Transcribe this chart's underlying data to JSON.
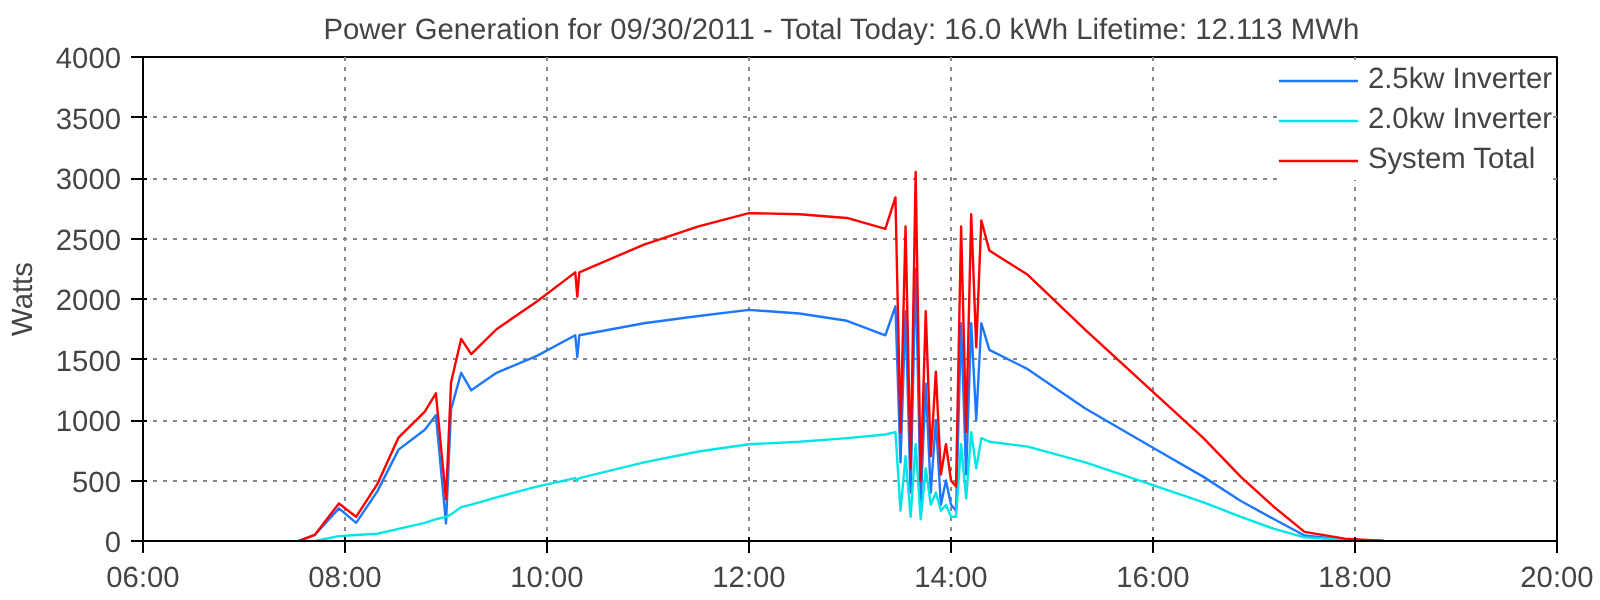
{
  "chart_data": {
    "type": "line",
    "title": "Power Generation for 09/30/2011 - Total Today: 16.0 kWh   Lifetime: 12.113 MWh",
    "ylabel": "Watts",
    "x": [
      7.54,
      7.7,
      7.94,
      8.11,
      8.32,
      8.53,
      8.79,
      8.9,
      9.0,
      9.05,
      9.15,
      9.25,
      9.5,
      9.9,
      10.28,
      10.3,
      10.32,
      10.96,
      11.5,
      12.0,
      12.5,
      12.97,
      13.35,
      13.45,
      13.5,
      13.55,
      13.6,
      13.65,
      13.7,
      13.75,
      13.8,
      13.85,
      13.9,
      13.95,
      14.0,
      14.05,
      14.1,
      14.15,
      14.2,
      14.25,
      14.3,
      14.38,
      14.76,
      15.33,
      15.97,
      16.5,
      16.87,
      17.2,
      17.5,
      17.9,
      18.29
    ],
    "series": [
      {
        "name": "2.5kw Inverter",
        "color": "#1e78ff",
        "values": [
          0,
          50,
          270,
          150,
          410,
          755,
          920,
          1040,
          145,
          1090,
          1390,
          1245,
          1390,
          1530,
          1700,
          1520,
          1700,
          1800,
          1860,
          1910,
          1880,
          1820,
          1700,
          1940,
          650,
          1900,
          400,
          2250,
          320,
          1300,
          400,
          1000,
          300,
          500,
          300,
          250,
          1800,
          550,
          1800,
          1000,
          1800,
          1580,
          1420,
          1095,
          785,
          530,
          330,
          180,
          45,
          10,
          0
        ]
      },
      {
        "name": "2.0kw Inverter",
        "color": "#00e5e5",
        "values": [
          0,
          0,
          40,
          50,
          60,
          100,
          150,
          180,
          200,
          220,
          280,
          300,
          360,
          450,
          520,
          500,
          520,
          650,
          740,
          800,
          820,
          850,
          880,
          900,
          250,
          700,
          200,
          800,
          180,
          600,
          300,
          400,
          250,
          300,
          200,
          200,
          800,
          350,
          900,
          600,
          850,
          820,
          780,
          650,
          470,
          320,
          200,
          100,
          30,
          10,
          0
        ]
      },
      {
        "name": "System Total",
        "color": "#ff0000",
        "values": [
          0,
          50,
          310,
          200,
          470,
          855,
          1070,
          1220,
          345,
          1310,
          1670,
          1545,
          1750,
          1980,
          2220,
          2020,
          2220,
          2450,
          2600,
          2710,
          2700,
          2670,
          2580,
          2840,
          900,
          2600,
          600,
          3050,
          500,
          1900,
          700,
          1400,
          550,
          800,
          500,
          450,
          2600,
          900,
          2700,
          1600,
          2650,
          2400,
          2200,
          1745,
          1255,
          850,
          530,
          280,
          75,
          20,
          0
        ]
      }
    ],
    "xlim": [
      6,
      20
    ],
    "xticks": [
      {
        "value": 6,
        "label": "06:00"
      },
      {
        "value": 8,
        "label": "08:00"
      },
      {
        "value": 10,
        "label": "10:00"
      },
      {
        "value": 12,
        "label": "12:00"
      },
      {
        "value": 14,
        "label": "14:00"
      },
      {
        "value": 16,
        "label": "16:00"
      },
      {
        "value": 18,
        "label": "18:00"
      },
      {
        "value": 20,
        "label": "20:00"
      }
    ],
    "ylim": [
      0,
      4000
    ],
    "yticks": [
      0,
      500,
      1000,
      1500,
      2000,
      2500,
      3000,
      3500,
      4000
    ],
    "grid": true,
    "legend": "top right",
    "line_style": "solid",
    "marker": "none"
  }
}
